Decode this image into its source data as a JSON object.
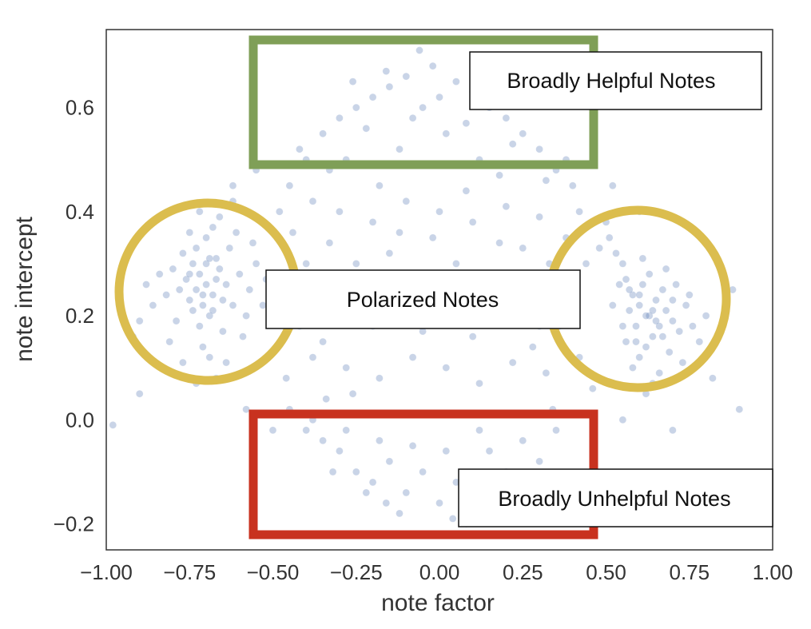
{
  "chart_data": {
    "type": "scatter",
    "xlabel": "note factor",
    "ylabel": "note intercept",
    "xlim": [
      -1.0,
      1.0
    ],
    "ylim": [
      -0.25,
      0.75
    ],
    "x_ticks": [
      "−1.00",
      "−0.75",
      "−0.50",
      "−0.25",
      "0.00",
      "0.25",
      "0.50",
      "0.75",
      "1.00"
    ],
    "x_tick_values": [
      -1.0,
      -0.75,
      -0.5,
      -0.25,
      0.0,
      0.25,
      0.5,
      0.75,
      1.0
    ],
    "y_ticks": [
      "−0.2",
      "0.0",
      "0.2",
      "0.4",
      "0.6"
    ],
    "y_tick_values": [
      -0.2,
      0.0,
      0.2,
      0.4,
      0.6
    ],
    "grid": false,
    "point_color": "#4c72b0",
    "series": [
      {
        "values": [
          [
            -0.72,
            0.28
          ],
          [
            -0.7,
            0.26
          ],
          [
            -0.74,
            0.3
          ],
          [
            -0.68,
            0.24
          ],
          [
            -0.76,
            0.27
          ],
          [
            -0.71,
            0.22
          ],
          [
            -0.66,
            0.29
          ],
          [
            -0.73,
            0.33
          ],
          [
            -0.69,
            0.2
          ],
          [
            -0.75,
            0.23
          ],
          [
            -0.67,
            0.31
          ],
          [
            -0.78,
            0.25
          ],
          [
            -0.64,
            0.26
          ],
          [
            -0.7,
            0.35
          ],
          [
            -0.72,
            0.18
          ],
          [
            -0.62,
            0.22
          ],
          [
            -0.8,
            0.29
          ],
          [
            -0.65,
            0.17
          ],
          [
            -0.77,
            0.32
          ],
          [
            -0.6,
            0.28
          ],
          [
            -0.68,
            0.37
          ],
          [
            -0.74,
            0.21
          ],
          [
            -0.63,
            0.33
          ],
          [
            -0.82,
            0.24
          ],
          [
            -0.58,
            0.2
          ],
          [
            -0.71,
            0.14
          ],
          [
            -0.66,
            0.39
          ],
          [
            -0.79,
            0.19
          ],
          [
            -0.61,
            0.36
          ],
          [
            -0.84,
            0.28
          ],
          [
            -0.57,
            0.25
          ],
          [
            -0.69,
            0.12
          ],
          [
            -0.75,
            0.36
          ],
          [
            -0.59,
            0.16
          ],
          [
            -0.86,
            0.22
          ],
          [
            -0.55,
            0.3
          ],
          [
            -0.64,
            0.11
          ],
          [
            -0.72,
            0.4
          ],
          [
            -0.81,
            0.15
          ],
          [
            -0.56,
            0.34
          ],
          [
            -0.88,
            0.26
          ],
          [
            -0.53,
            0.22
          ],
          [
            -0.67,
            0.08
          ],
          [
            -0.77,
            0.11
          ],
          [
            -0.62,
            0.42
          ],
          [
            -0.9,
            0.19
          ],
          [
            -0.52,
            0.27
          ],
          [
            -0.73,
            0.07
          ],
          [
            -0.7,
            0.3
          ],
          [
            -0.67,
            0.27
          ],
          [
            -0.73,
            0.25
          ],
          [
            -0.69,
            0.31
          ],
          [
            -0.71,
            0.24
          ],
          [
            -0.65,
            0.23
          ],
          [
            -0.75,
            0.28
          ],
          [
            -0.68,
            0.21
          ],
          [
            0.63,
            0.2
          ],
          [
            0.6,
            0.22
          ],
          [
            0.66,
            0.18
          ],
          [
            0.58,
            0.24
          ],
          [
            0.64,
            0.16
          ],
          [
            0.61,
            0.26
          ],
          [
            0.68,
            0.21
          ],
          [
            0.56,
            0.27
          ],
          [
            0.65,
            0.23
          ],
          [
            0.59,
            0.18
          ],
          [
            0.7,
            0.19
          ],
          [
            0.62,
            0.14
          ],
          [
            0.55,
            0.3
          ],
          [
            0.67,
            0.25
          ],
          [
            0.72,
            0.17
          ],
          [
            0.57,
            0.21
          ],
          [
            0.6,
            0.12
          ],
          [
            0.53,
            0.32
          ],
          [
            0.69,
            0.13
          ],
          [
            0.74,
            0.22
          ],
          [
            0.63,
            0.28
          ],
          [
            0.51,
            0.35
          ],
          [
            0.58,
            0.1
          ],
          [
            0.71,
            0.26
          ],
          [
            0.66,
            0.09
          ],
          [
            0.54,
            0.26
          ],
          [
            0.76,
            0.18
          ],
          [
            0.61,
            0.31
          ],
          [
            0.5,
            0.38
          ],
          [
            0.64,
            0.07
          ],
          [
            0.73,
            0.11
          ],
          [
            0.56,
            0.15
          ],
          [
            0.68,
            0.29
          ],
          [
            0.78,
            0.15
          ],
          [
            0.52,
            0.22
          ],
          [
            0.62,
            0.2
          ],
          [
            0.65,
            0.19
          ],
          [
            0.6,
            0.24
          ],
          [
            0.57,
            0.25
          ],
          [
            0.64,
            0.21
          ],
          [
            0.59,
            0.15
          ],
          [
            0.7,
            0.23
          ],
          [
            0.55,
            0.18
          ],
          [
            0.67,
            0.16
          ],
          [
            0.48,
            0.33
          ],
          [
            0.75,
            0.24
          ],
          [
            0.62,
            0.05
          ],
          [
            0.8,
            0.2
          ],
          [
            -0.45,
            0.45
          ],
          [
            -0.4,
            0.5
          ],
          [
            -0.35,
            0.55
          ],
          [
            -0.3,
            0.58
          ],
          [
            -0.25,
            0.6
          ],
          [
            -0.2,
            0.62
          ],
          [
            -0.15,
            0.64
          ],
          [
            -0.1,
            0.66
          ],
          [
            -0.05,
            0.6
          ],
          [
            0.0,
            0.62
          ],
          [
            0.05,
            0.65
          ],
          [
            0.1,
            0.63
          ],
          [
            0.15,
            0.6
          ],
          [
            0.2,
            0.58
          ],
          [
            0.25,
            0.55
          ],
          [
            0.3,
            0.52
          ],
          [
            0.35,
            0.48
          ],
          [
            0.4,
            0.45
          ],
          [
            -0.42,
            0.52
          ],
          [
            -0.33,
            0.48
          ],
          [
            -0.22,
            0.56
          ],
          [
            -0.12,
            0.52
          ],
          [
            0.02,
            0.55
          ],
          [
            0.12,
            0.5
          ],
          [
            0.22,
            0.53
          ],
          [
            0.32,
            0.46
          ],
          [
            -0.38,
            0.42
          ],
          [
            -0.28,
            0.5
          ],
          [
            -0.18,
            0.45
          ],
          [
            -0.08,
            0.58
          ],
          [
            0.08,
            0.57
          ],
          [
            0.18,
            0.47
          ],
          [
            0.28,
            0.61
          ],
          [
            0.38,
            0.5
          ],
          [
            -0.02,
            0.68
          ],
          [
            -0.16,
            0.67
          ],
          [
            0.14,
            0.68
          ],
          [
            -0.26,
            0.65
          ],
          [
            0.26,
            0.64
          ],
          [
            -0.06,
            0.71
          ],
          [
            -0.48,
            0.4
          ],
          [
            -0.44,
            0.36
          ],
          [
            -0.4,
            0.3
          ],
          [
            -0.36,
            0.24
          ],
          [
            -0.42,
            0.18
          ],
          [
            -0.38,
            0.12
          ],
          [
            -0.46,
            0.08
          ],
          [
            -0.34,
            0.04
          ],
          [
            0.42,
            0.4
          ],
          [
            0.38,
            0.35
          ],
          [
            0.44,
            0.3
          ],
          [
            0.4,
            0.25
          ],
          [
            0.36,
            0.18
          ],
          [
            0.42,
            0.12
          ],
          [
            0.46,
            0.06
          ],
          [
            0.34,
            0.02
          ],
          [
            -0.3,
            0.4
          ],
          [
            -0.2,
            0.38
          ],
          [
            -0.1,
            0.42
          ],
          [
            0.0,
            0.4
          ],
          [
            0.1,
            0.38
          ],
          [
            0.2,
            0.41
          ],
          [
            0.3,
            0.39
          ],
          [
            -0.25,
            0.3
          ],
          [
            -0.15,
            0.32
          ],
          [
            -0.05,
            0.28
          ],
          [
            0.05,
            0.3
          ],
          [
            0.15,
            0.27
          ],
          [
            0.25,
            0.33
          ],
          [
            -0.3,
            0.2
          ],
          [
            -0.2,
            0.18
          ],
          [
            -0.1,
            0.22
          ],
          [
            0.0,
            0.2
          ],
          [
            0.1,
            0.16
          ],
          [
            0.2,
            0.21
          ],
          [
            0.3,
            0.18
          ],
          [
            -0.28,
            0.1
          ],
          [
            -0.18,
            0.08
          ],
          [
            -0.08,
            0.12
          ],
          [
            0.02,
            0.1
          ],
          [
            0.12,
            0.07
          ],
          [
            0.22,
            0.11
          ],
          [
            0.32,
            0.09
          ],
          [
            -0.33,
            0.34
          ],
          [
            0.33,
            0.3
          ],
          [
            -0.12,
            0.36
          ],
          [
            0.08,
            0.44
          ],
          [
            -0.22,
            0.24
          ],
          [
            0.24,
            0.26
          ],
          [
            -0.02,
            0.35
          ],
          [
            0.18,
            0.34
          ],
          [
            -0.35,
            0.15
          ],
          [
            0.28,
            0.14
          ],
          [
            -0.05,
            0.17
          ],
          [
            0.14,
            0.22
          ],
          [
            -0.26,
            0.05
          ],
          [
            -0.45,
            0.02
          ],
          [
            -0.4,
            -0.02
          ],
          [
            -0.35,
            -0.04
          ],
          [
            -0.3,
            -0.06
          ],
          [
            -0.25,
            -0.1
          ],
          [
            -0.2,
            -0.12
          ],
          [
            -0.15,
            -0.08
          ],
          [
            -0.1,
            -0.14
          ],
          [
            -0.05,
            -0.1
          ],
          [
            0.0,
            -0.16
          ],
          [
            0.05,
            -0.12
          ],
          [
            0.1,
            -0.18
          ],
          [
            0.15,
            -0.06
          ],
          [
            0.2,
            -0.1
          ],
          [
            0.25,
            -0.04
          ],
          [
            0.3,
            -0.08
          ],
          [
            -0.22,
            -0.14
          ],
          [
            -0.12,
            -0.18
          ],
          [
            -0.18,
            -0.04
          ],
          [
            0.02,
            -0.06
          ],
          [
            0.12,
            -0.02
          ],
          [
            0.22,
            -0.14
          ],
          [
            -0.28,
            -0.02
          ],
          [
            0.08,
            -0.2
          ],
          [
            -0.08,
            -0.05
          ],
          [
            0.18,
            -0.16
          ],
          [
            -0.32,
            -0.1
          ],
          [
            0.27,
            -0.12
          ],
          [
            -0.16,
            -0.16
          ],
          [
            0.04,
            -0.19
          ],
          [
            0.35,
            -0.02
          ],
          [
            -0.38,
            0.0
          ],
          [
            -0.92,
            0.16
          ],
          [
            -0.95,
            0.3
          ],
          [
            0.85,
            0.18
          ],
          [
            0.88,
            0.25
          ],
          [
            0.82,
            0.08
          ],
          [
            -0.9,
            0.05
          ],
          [
            0.9,
            0.02
          ],
          [
            -0.55,
            0.48
          ],
          [
            0.52,
            0.45
          ],
          [
            -0.62,
            0.45
          ],
          [
            0.6,
            0.4
          ],
          [
            -0.58,
            0.02
          ],
          [
            0.55,
            0.0
          ],
          [
            -0.98,
            -0.01
          ],
          [
            0.7,
            -0.02
          ],
          [
            -0.5,
            -0.02
          ]
        ]
      }
    ],
    "annotations": [
      {
        "label": "Broadly Helpful Notes",
        "color": "#7f9f57"
      },
      {
        "label": "Polarized Notes",
        "color": "#dbbd4e"
      },
      {
        "label": "Broadly Unhelpful Notes",
        "color": "#c8321f"
      }
    ]
  }
}
